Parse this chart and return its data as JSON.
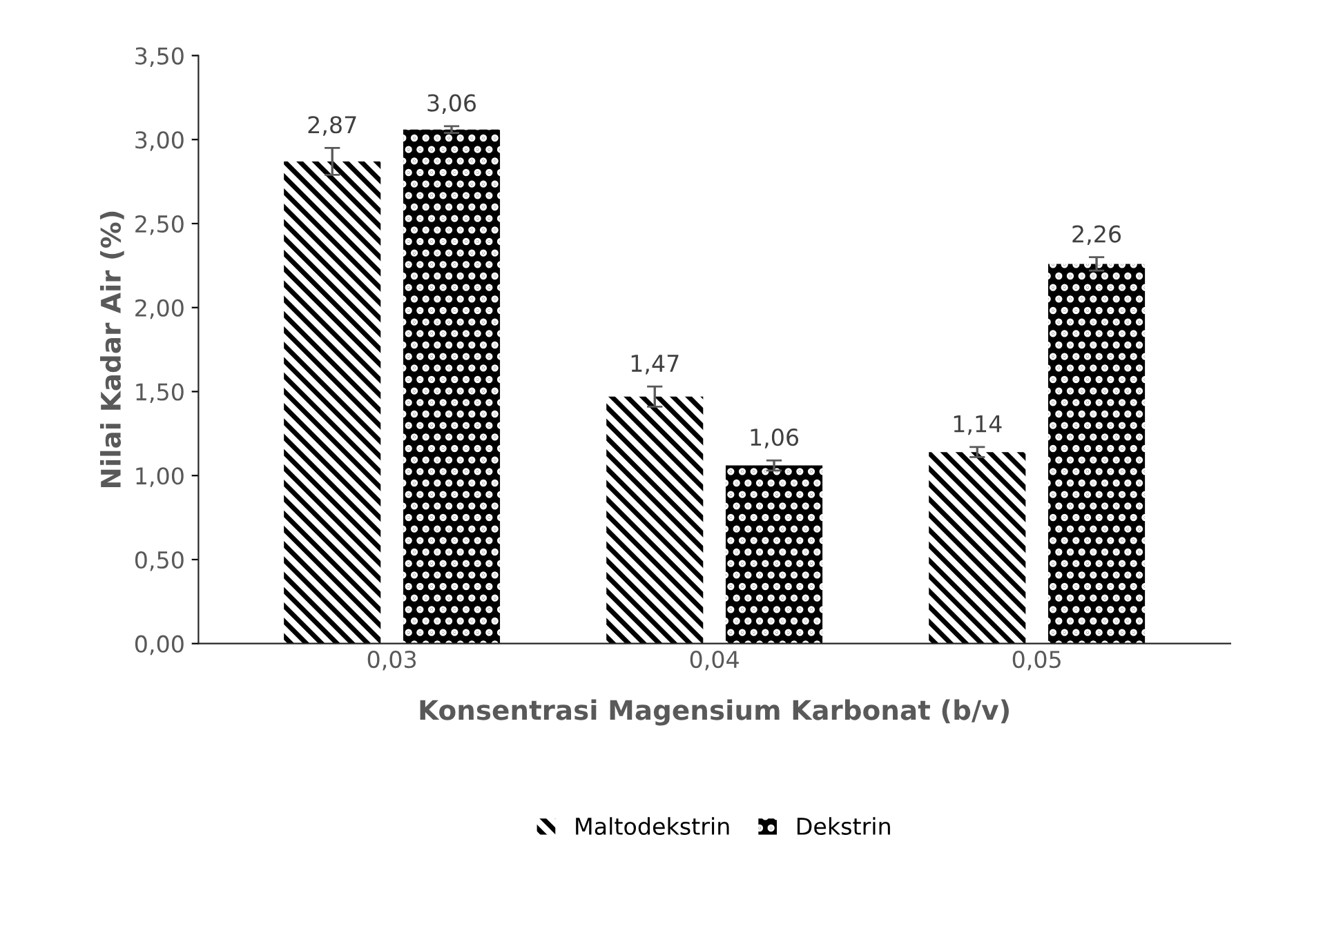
{
  "chart_data": {
    "type": "bar",
    "xlabel": "Konsentrasi Magensium Karbonat (b/v)",
    "ylabel": "Nilai Kadar Air (%)",
    "categories": [
      "0,03",
      "0,04",
      "0,05"
    ],
    "series": [
      {
        "name": "Maltodekstrin",
        "color": "#000000",
        "values": [
          2.87,
          1.47,
          1.14
        ],
        "errors": [
          0.08,
          0.06,
          0.03
        ],
        "value_labels": [
          "2,87",
          "1,47",
          "1,14"
        ]
      },
      {
        "name": "Dekstrin",
        "color": "#000000",
        "values": [
          3.06,
          1.06,
          2.26
        ],
        "errors": [
          0.02,
          0.03,
          0.04
        ],
        "value_labels": [
          "3,06",
          "1,06",
          "2,26"
        ]
      }
    ],
    "ylim": [
      0,
      3.5
    ],
    "yticks": [
      {
        "value": 0,
        "label": "0,00"
      },
      {
        "value": 0.5,
        "label": "0,50"
      },
      {
        "value": 1,
        "label": "1,00"
      },
      {
        "value": 1.5,
        "label": "1,50"
      },
      {
        "value": 2,
        "label": "2,00"
      },
      {
        "value": 2.5,
        "label": "2,50"
      },
      {
        "value": 3,
        "label": "3,00"
      },
      {
        "value": 3.5,
        "label": "3,50"
      }
    ],
    "grid": false,
    "legend": "bottom"
  }
}
